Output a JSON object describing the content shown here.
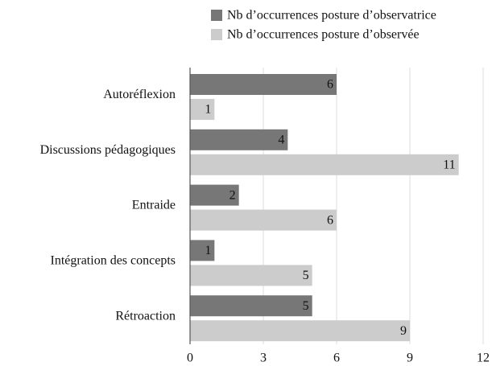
{
  "chart_data": {
    "type": "hbar",
    "categories": [
      "Autoréflexion",
      "Discussions pédagogiques",
      "Entraide",
      "Intégration des concepts",
      "Rétroaction"
    ],
    "series": [
      {
        "name": "Nb d’occurrences posture d’observatrice",
        "color": "#777777",
        "values": [
          6,
          4,
          2,
          1,
          5
        ]
      },
      {
        "name": "Nb d’occurrences posture d’observée",
        "color": "#cccccc",
        "values": [
          1,
          11,
          6,
          5,
          9
        ]
      }
    ],
    "xlim": [
      0,
      12
    ],
    "xticks": [
      0,
      3,
      6,
      9,
      12
    ],
    "grid": true,
    "legend": "top"
  }
}
